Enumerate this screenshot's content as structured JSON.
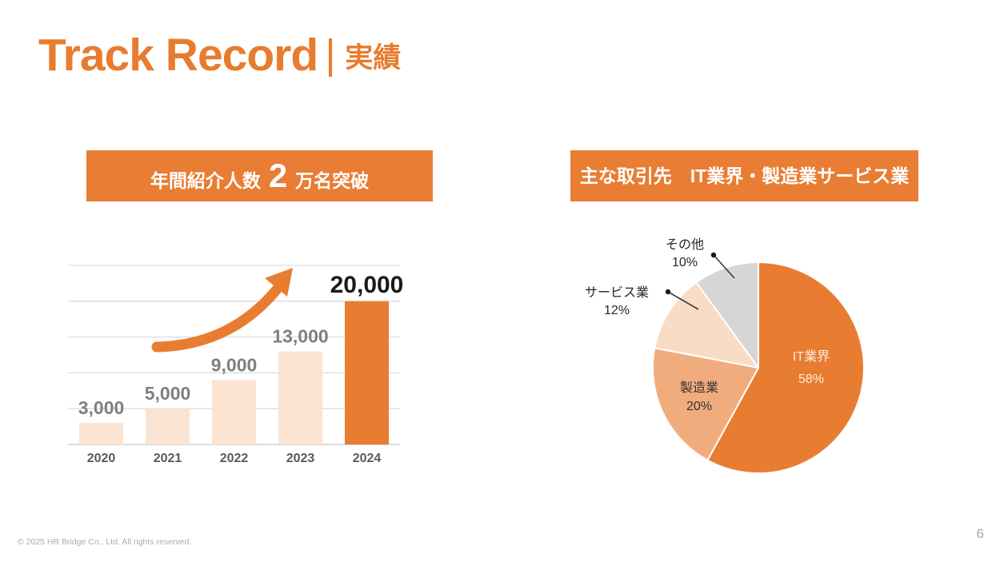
{
  "header": {
    "title": "Track Record",
    "subtitle": "実績"
  },
  "banners": {
    "bar": {
      "prefix": "年間紹介人数",
      "big_number": "2",
      "suffix": "万名突破"
    },
    "pie": {
      "label": "主な取引先　IT業界・製造業サービス業"
    }
  },
  "footer": {
    "copyright": "© 2025 HR Bridge Co., Ltd. All rights reserved.",
    "page_number": "6"
  },
  "colors": {
    "accent_orange": "#E87D31",
    "bar_light": "#FBE3D2",
    "bar_highlight": "#E87D31",
    "grid_line": "#DCDCDC",
    "axis_line": "#C8C8C8",
    "value_label_gray": "#7F7F7F",
    "value_label_black": "#1A1A1A",
    "year_label": "#595959",
    "leader_line": "#3A3A3A"
  },
  "chart_data": [
    {
      "type": "bar",
      "title": "年間紹介人数 2 万名突破",
      "categories": [
        "2020",
        "2021",
        "2022",
        "2023",
        "2024"
      ],
      "values": [
        3000,
        5000,
        9000,
        13000,
        20000
      ],
      "data_labels": [
        "3,000",
        "5,000",
        "9,000",
        "13,000",
        "20,000"
      ],
      "xlabel": "",
      "ylabel": "",
      "ylim": [
        0,
        25000
      ],
      "grid_step": 5000,
      "grid": true,
      "highlight_index": 4,
      "annotation": "growth-arrow"
    },
    {
      "type": "pie",
      "title": "主な取引先　IT業界・製造業サービス業",
      "start_angle": "12-oclock-clockwise",
      "slices": [
        {
          "label": "IT業界",
          "value": 58,
          "display": "58%",
          "color": "#E87D31",
          "label_placement": "inside",
          "label_color": "#FAEFE5"
        },
        {
          "label": "製造業",
          "value": 20,
          "display": "20%",
          "color": "#F1AC7E",
          "label_placement": "inside",
          "label_color": "#333333"
        },
        {
          "label": "サービス業",
          "value": 12,
          "display": "12%",
          "color": "#F9DCC6",
          "label_placement": "outside",
          "label_color": "#262626"
        },
        {
          "label": "その他",
          "value": 10,
          "display": "10%",
          "color": "#D6D6D7",
          "label_placement": "outside",
          "label_color": "#262626"
        }
      ]
    }
  ]
}
